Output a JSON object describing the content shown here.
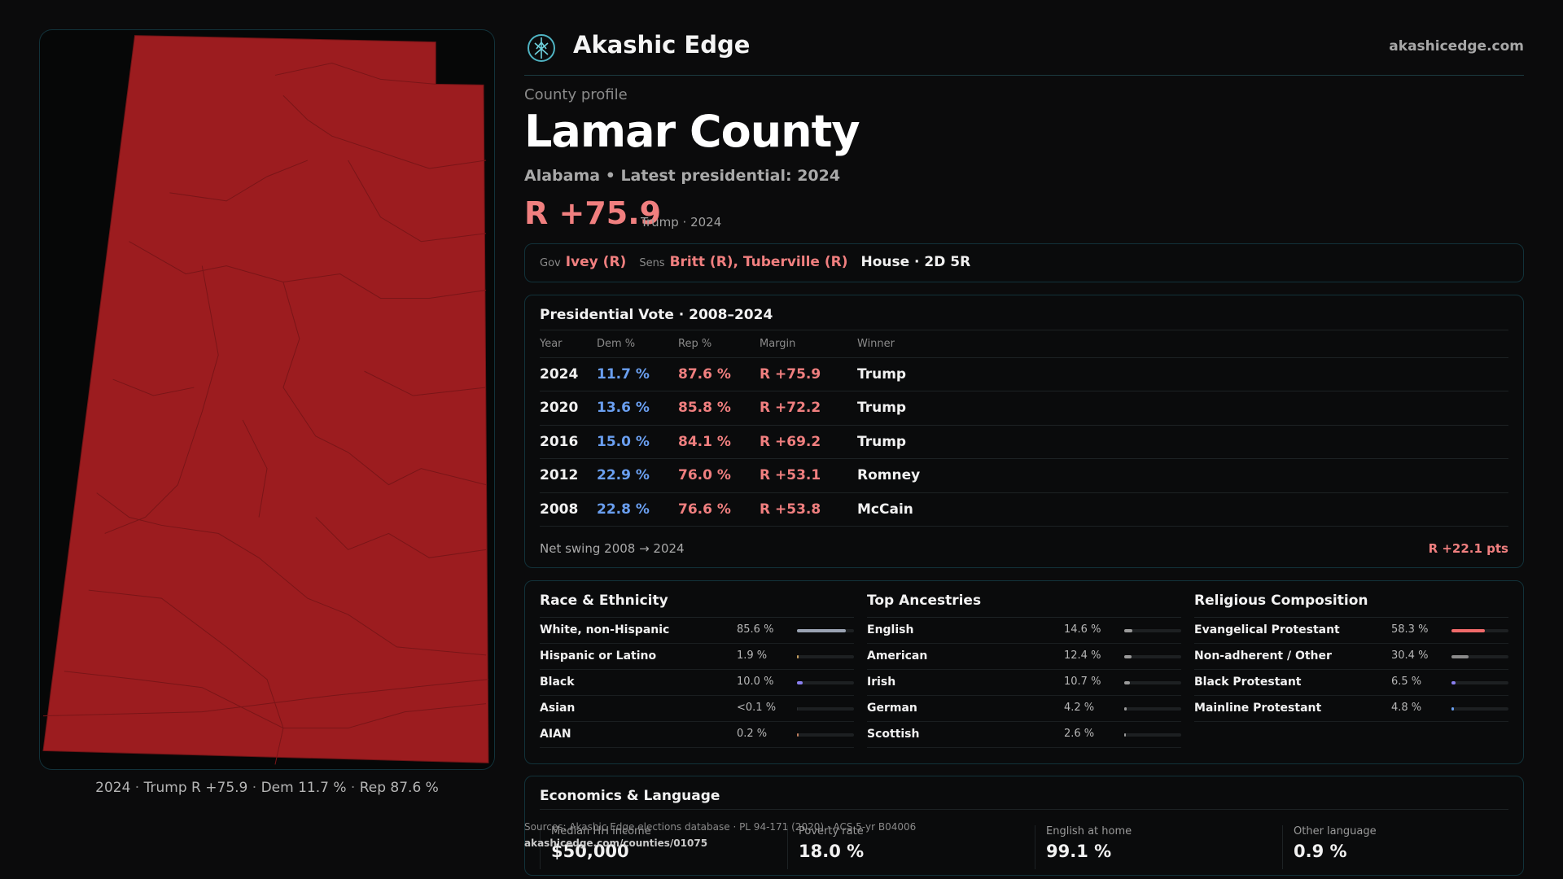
{
  "header": {
    "brand": "Akashic Edge",
    "site": "akashicedge.com",
    "logo_icon": "compass-tree-icon"
  },
  "profile": {
    "kicker": "County profile",
    "title": "Lamar County",
    "subtitle": "Alabama • Latest presidential: 2024",
    "margin": "R +75.9",
    "margin_note": "Trump · 2024"
  },
  "officials": {
    "gov_label": "Gov",
    "gov": "Ivey (R)",
    "sens_label": "Sens",
    "sens": "Britt (R), Tuberville (R)",
    "house": "House · 2D 5R"
  },
  "presidential": {
    "title": "Presidential Vote · 2008–2024",
    "columns": [
      "Year",
      "Dem %",
      "Rep %",
      "Margin",
      "Winner"
    ],
    "rows": [
      {
        "year": "2024",
        "dem": "11.7 %",
        "rep": "87.6 %",
        "margin": "R +75.9",
        "winner": "Trump"
      },
      {
        "year": "2020",
        "dem": "13.6 %",
        "rep": "85.8 %",
        "margin": "R +72.2",
        "winner": "Trump"
      },
      {
        "year": "2016",
        "dem": "15.0 %",
        "rep": "84.1 %",
        "margin": "R +69.2",
        "winner": "Trump"
      },
      {
        "year": "2012",
        "dem": "22.9 %",
        "rep": "76.0 %",
        "margin": "R +53.1",
        "winner": "Romney"
      },
      {
        "year": "2008",
        "dem": "22.8 %",
        "rep": "76.6 %",
        "margin": "R +53.8",
        "winner": "McCain"
      }
    ],
    "swing_label": "Net swing 2008 → 2024",
    "swing_value": "R +22.1 pts"
  },
  "race": {
    "title": "Race & Ethnicity",
    "items": [
      {
        "label": "White, non-Hispanic",
        "pct": "85.6 %",
        "share": 0.856,
        "color": "#9aa3b3"
      },
      {
        "label": "Hispanic or Latino",
        "pct": "1.9 %",
        "share": 0.019,
        "color": "#c8a060"
      },
      {
        "label": "Black",
        "pct": "10.0 %",
        "share": 0.1,
        "color": "#8a7ff0"
      },
      {
        "label": "Asian",
        "pct": "<0.1 %",
        "share": 0.0,
        "color": "#5fc0c0"
      },
      {
        "label": "AIAN",
        "pct": "0.2 %",
        "share": 0.002,
        "color": "#c07f5f"
      }
    ]
  },
  "ancestry": {
    "title": "Top Ancestries",
    "items": [
      {
        "label": "English",
        "pct": "14.6 %",
        "share": 0.146,
        "color": "#9a9a9a"
      },
      {
        "label": "American",
        "pct": "12.4 %",
        "share": 0.124,
        "color": "#9a9a9a"
      },
      {
        "label": "Irish",
        "pct": "10.7 %",
        "share": 0.107,
        "color": "#9a9a9a"
      },
      {
        "label": "German",
        "pct": "4.2 %",
        "share": 0.042,
        "color": "#9a9a9a"
      },
      {
        "label": "Scottish",
        "pct": "2.6 %",
        "share": 0.026,
        "color": "#9a9a9a"
      }
    ]
  },
  "religion": {
    "title": "Religious Composition",
    "items": [
      {
        "label": "Evangelical Protestant",
        "pct": "58.3 %",
        "share": 0.583,
        "color": "#f06a6a"
      },
      {
        "label": "Non-adherent / Other",
        "pct": "30.4 %",
        "share": 0.304,
        "color": "#8a8a8a"
      },
      {
        "label": "Black Protestant",
        "pct": "6.5 %",
        "share": 0.065,
        "color": "#8a7ff0"
      },
      {
        "label": "Mainline Protestant",
        "pct": "4.8 %",
        "share": 0.048,
        "color": "#6a9ff0"
      }
    ]
  },
  "economics": {
    "title": "Economics & Language",
    "stats": [
      {
        "label": "Median HH income",
        "value": "$50,000"
      },
      {
        "label": "Poverty rate",
        "value": "18.0 %"
      },
      {
        "label": "English at home",
        "value": "99.1 %"
      },
      {
        "label": "Other language",
        "value": "0.9 %"
      }
    ]
  },
  "sources": {
    "line1": "Sources: Akashic Edge elections database · PL 94-171 (2020) · ACS 5-yr B04006",
    "line2": "akashicedge.com/counties/01075"
  },
  "map": {
    "caption_year": "2024",
    "caption_winner": "Trump",
    "caption_margin": "R +75.9",
    "caption_dem": "Dem 11.7 %",
    "caption_rep": "Rep 87.6 %",
    "fill_color": "#9c1c1f"
  }
}
